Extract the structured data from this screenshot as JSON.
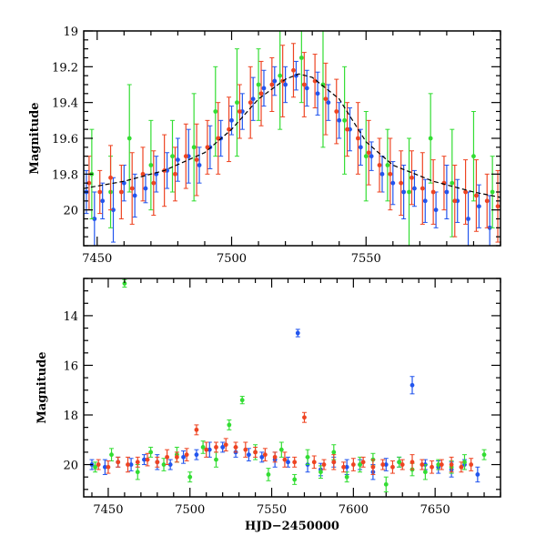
{
  "chart_data": [
    {
      "type": "scatter",
      "title": "",
      "xlabel": "",
      "ylabel": "Magnitude",
      "xlim": [
        7445,
        7600
      ],
      "ylim": [
        20.2,
        19.0
      ],
      "y_inverted": true,
      "grid": false,
      "legend": "none",
      "x_ticks": [
        7450,
        7500,
        7550
      ],
      "y_ticks": [
        19,
        19.2,
        19.4,
        19.6,
        19.8,
        20
      ],
      "x_tick_labels": [
        "7450",
        "7500",
        "7550"
      ],
      "y_tick_labels": [
        "19",
        "19.2",
        "19.4",
        "19.6",
        "19.8",
        "20"
      ],
      "model_curve": {
        "color": "#000000",
        "style": "dashed",
        "x": [
          7445,
          7460,
          7475,
          7490,
          7500,
          7510,
          7520,
          7525,
          7530,
          7540,
          7550,
          7560,
          7575,
          7590,
          7600
        ],
        "y": [
          19.88,
          19.84,
          19.78,
          19.68,
          19.55,
          19.38,
          19.27,
          19.24,
          19.26,
          19.38,
          19.62,
          19.75,
          19.84,
          19.9,
          19.93
        ]
      },
      "series": [
        {
          "color": "#2255ee",
          "x": [
            7446,
            7449,
            7452,
            7456,
            7460,
            7464,
            7468,
            7472,
            7476,
            7480,
            7484,
            7488,
            7492,
            7496,
            7500,
            7504,
            7508,
            7512,
            7516,
            7520,
            7524,
            7528,
            7532,
            7536,
            7540,
            7544,
            7548,
            7552,
            7556,
            7560,
            7564,
            7568,
            7572,
            7576,
            7580,
            7584,
            7588,
            7592,
            7596
          ],
          "y": [
            19.9,
            20.05,
            19.95,
            20.0,
            19.85,
            19.92,
            19.88,
            19.8,
            19.78,
            19.72,
            19.7,
            19.75,
            19.65,
            19.6,
            19.5,
            19.45,
            19.38,
            19.32,
            19.28,
            19.3,
            19.25,
            19.32,
            19.35,
            19.4,
            19.5,
            19.55,
            19.65,
            19.7,
            19.8,
            19.85,
            19.9,
            19.88,
            19.95,
            20.0,
            19.9,
            19.95,
            20.05,
            19.98,
            20.1
          ],
          "err": [
            0.12,
            0.15,
            0.1,
            0.18,
            0.1,
            0.12,
            0.08,
            0.1,
            0.1,
            0.12,
            0.15,
            0.1,
            0.12,
            0.1,
            0.08,
            0.1,
            0.12,
            0.1,
            0.08,
            0.1,
            0.08,
            0.1,
            0.12,
            0.1,
            0.1,
            0.12,
            0.1,
            0.08,
            0.1,
            0.12,
            0.15,
            0.1,
            0.12,
            0.1,
            0.15,
            0.12,
            0.15,
            0.12,
            0.18
          ]
        },
        {
          "color": "#33dd33",
          "x": [
            7448,
            7455,
            7462,
            7470,
            7478,
            7486,
            7494,
            7502,
            7510,
            7518,
            7526,
            7534,
            7542,
            7550,
            7558,
            7566,
            7574,
            7582,
            7590,
            7597
          ],
          "y": [
            19.8,
            19.9,
            19.6,
            19.75,
            19.7,
            19.65,
            19.45,
            19.4,
            19.3,
            19.25,
            19.15,
            19.3,
            19.5,
            19.7,
            19.75,
            19.9,
            19.6,
            19.85,
            19.7,
            19.9
          ],
          "err": [
            0.25,
            0.2,
            0.3,
            0.25,
            0.2,
            0.3,
            0.25,
            0.3,
            0.2,
            0.3,
            0.25,
            0.35,
            0.3,
            0.25,
            0.2,
            0.3,
            0.25,
            0.3,
            0.25,
            0.2
          ]
        },
        {
          "color": "#ee4422",
          "x": [
            7447,
            7451,
            7455,
            7459,
            7463,
            7467,
            7471,
            7475,
            7479,
            7483,
            7487,
            7491,
            7495,
            7499,
            7503,
            7507,
            7511,
            7515,
            7519,
            7523,
            7527,
            7531,
            7535,
            7539,
            7543,
            7547,
            7551,
            7555,
            7559,
            7563,
            7567,
            7571,
            7575,
            7579,
            7583,
            7587,
            7591,
            7595,
            7599
          ],
          "y": [
            19.85,
            19.9,
            19.82,
            19.9,
            19.88,
            19.8,
            19.85,
            19.78,
            19.8,
            19.7,
            19.72,
            19.65,
            19.6,
            19.55,
            19.45,
            19.4,
            19.35,
            19.3,
            19.28,
            19.22,
            19.3,
            19.28,
            19.38,
            19.45,
            19.55,
            19.6,
            19.68,
            19.75,
            19.8,
            19.85,
            19.82,
            19.88,
            19.9,
            19.85,
            19.95,
            19.9,
            19.92,
            19.95,
            19.98
          ],
          "err": [
            0.15,
            0.12,
            0.18,
            0.15,
            0.2,
            0.15,
            0.18,
            0.2,
            0.15,
            0.18,
            0.2,
            0.15,
            0.2,
            0.18,
            0.15,
            0.2,
            0.18,
            0.15,
            0.2,
            0.15,
            0.18,
            0.15,
            0.2,
            0.18,
            0.15,
            0.2,
            0.18,
            0.15,
            0.2,
            0.18,
            0.15,
            0.2,
            0.18,
            0.15,
            0.2,
            0.18,
            0.2,
            0.15,
            0.2
          ]
        }
      ]
    },
    {
      "type": "scatter",
      "title": "",
      "xlabel": "HJD−2450000",
      "ylabel": "Magnitude",
      "xlim": [
        7435,
        7690
      ],
      "ylim": [
        21.3,
        12.5
      ],
      "y_inverted": true,
      "grid": false,
      "legend": "none",
      "x_ticks": [
        7450,
        7500,
        7550,
        7600,
        7650
      ],
      "y_ticks": [
        14,
        16,
        18,
        20
      ],
      "x_tick_labels": [
        "7450",
        "7500",
        "7550",
        "7600",
        "7650"
      ],
      "y_tick_labels": [
        "14",
        "16",
        "18",
        "20"
      ],
      "series": [
        {
          "color": "#2255ee",
          "x": [
            7440,
            7448,
            7456,
            7464,
            7472,
            7480,
            7488,
            7496,
            7504,
            7512,
            7520,
            7528,
            7536,
            7544,
            7552,
            7560,
            7566,
            7572,
            7580,
            7588,
            7596,
            7604,
            7612,
            7620,
            7628,
            7636,
            7644,
            7652,
            7660,
            7668,
            7676
          ],
          "y": [
            20.0,
            20.1,
            19.9,
            20.0,
            19.8,
            19.9,
            20.0,
            19.7,
            19.6,
            19.4,
            19.3,
            19.5,
            19.6,
            19.7,
            19.8,
            19.9,
            14.7,
            20.0,
            20.2,
            19.9,
            20.1,
            20.0,
            20.3,
            20.0,
            19.9,
            16.8,
            20.0,
            20.1,
            20.2,
            20.0,
            20.4
          ],
          "err": [
            0.2,
            0.3,
            0.2,
            0.25,
            0.2,
            0.3,
            0.2,
            0.25,
            0.2,
            0.3,
            0.2,
            0.2,
            0.25,
            0.2,
            0.3,
            0.2,
            0.15,
            0.3,
            0.25,
            0.2,
            0.3,
            0.2,
            0.3,
            0.25,
            0.2,
            0.35,
            0.2,
            0.25,
            0.3,
            0.2,
            0.3
          ]
        },
        {
          "color": "#33dd33",
          "x": [
            7442,
            7452,
            7460,
            7468,
            7476,
            7484,
            7492,
            7500,
            7508,
            7516,
            7524,
            7532,
            7540,
            7548,
            7556,
            7564,
            7572,
            7580,
            7588,
            7596,
            7604,
            7612,
            7620,
            7628,
            7636,
            7644,
            7652,
            7660,
            7668,
            7680
          ],
          "y": [
            20.1,
            19.6,
            12.7,
            20.3,
            19.5,
            20.0,
            19.6,
            20.5,
            19.3,
            19.8,
            18.4,
            17.4,
            19.5,
            20.4,
            19.4,
            20.6,
            19.7,
            20.3,
            19.5,
            20.5,
            20.0,
            19.8,
            20.8,
            19.9,
            20.2,
            20.3,
            20.0,
            20.1,
            19.9,
            19.6
          ],
          "err": [
            0.2,
            0.25,
            0.15,
            0.3,
            0.2,
            0.25,
            0.3,
            0.2,
            0.25,
            0.3,
            0.2,
            0.15,
            0.3,
            0.25,
            0.3,
            0.2,
            0.3,
            0.25,
            0.3,
            0.2,
            0.3,
            0.25,
            0.3,
            0.2,
            0.25,
            0.3,
            0.2,
            0.25,
            0.3,
            0.2
          ]
        },
        {
          "color": "#ee4422",
          "x": [
            7444,
            7450,
            7456,
            7462,
            7468,
            7474,
            7480,
            7486,
            7492,
            7498,
            7504,
            7510,
            7516,
            7522,
            7528,
            7534,
            7540,
            7546,
            7552,
            7558,
            7564,
            7570,
            7576,
            7582,
            7588,
            7594,
            7600,
            7606,
            7612,
            7618,
            7624,
            7630,
            7636,
            7642,
            7648,
            7654,
            7660,
            7666,
            7672
          ],
          "y": [
            20.0,
            20.1,
            19.9,
            20.0,
            19.9,
            19.8,
            19.9,
            19.7,
            19.7,
            19.6,
            18.6,
            19.4,
            19.3,
            19.2,
            19.3,
            19.4,
            19.5,
            19.6,
            19.7,
            19.8,
            19.9,
            18.1,
            19.9,
            20.0,
            19.9,
            20.1,
            20.0,
            19.9,
            20.1,
            20.0,
            20.1,
            20.0,
            19.9,
            20.0,
            20.1,
            20.0,
            20.0,
            20.1,
            20.0
          ],
          "err": [
            0.2,
            0.25,
            0.2,
            0.3,
            0.2,
            0.25,
            0.2,
            0.3,
            0.2,
            0.25,
            0.2,
            0.3,
            0.2,
            0.25,
            0.2,
            0.3,
            0.2,
            0.25,
            0.2,
            0.3,
            0.2,
            0.2,
            0.25,
            0.2,
            0.3,
            0.2,
            0.25,
            0.2,
            0.3,
            0.2,
            0.25,
            0.2,
            0.3,
            0.2,
            0.25,
            0.2,
            0.3,
            0.2,
            0.25
          ]
        }
      ]
    }
  ]
}
